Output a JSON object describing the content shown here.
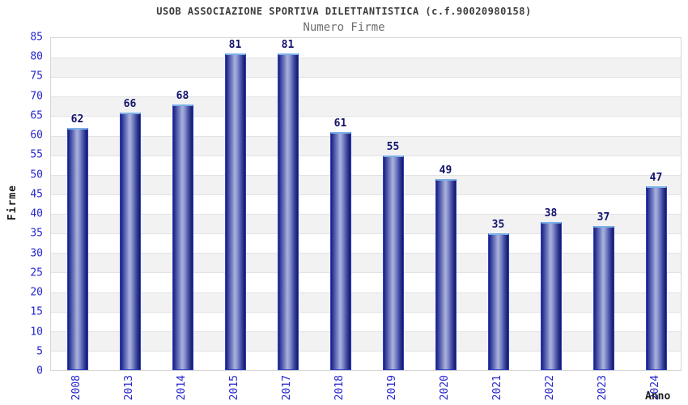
{
  "chart_data": {
    "type": "bar",
    "title": "USOB ASSOCIAZIONE SPORTIVA DILETTANTISTICA (c.f.90020980158)",
    "subtitle": "Numero Firme",
    "xlabel": "Anno",
    "ylabel": "Firme",
    "categories": [
      "2008",
      "2013",
      "2014",
      "2015",
      "2017",
      "2018",
      "2019",
      "2020",
      "2021",
      "2022",
      "2023",
      "2024"
    ],
    "values": [
      62,
      66,
      68,
      81,
      81,
      61,
      55,
      49,
      35,
      38,
      37,
      47
    ],
    "ylim": [
      0,
      85
    ],
    "ytick_step": 5,
    "legend": "none",
    "grid": "horizontal-bands-alternating",
    "colors": {
      "title-text": "#3c3c3c",
      "subtitle-text": "#6e6e6e",
      "tick-text": "#2626cc",
      "value-text": "#13136e",
      "axis-title-text": "#1f1f1f",
      "band-gray": "#f2f2f2",
      "grid-line": "#e3e3e3",
      "plot-border": "#d6d6d6",
      "bar-dark": "#1b1e73",
      "bar-mid": "#3a44a0",
      "bar-light": "#aab2dc",
      "bar-border": "#2c3ec9",
      "bar-cap": "#7bb0e8"
    }
  }
}
